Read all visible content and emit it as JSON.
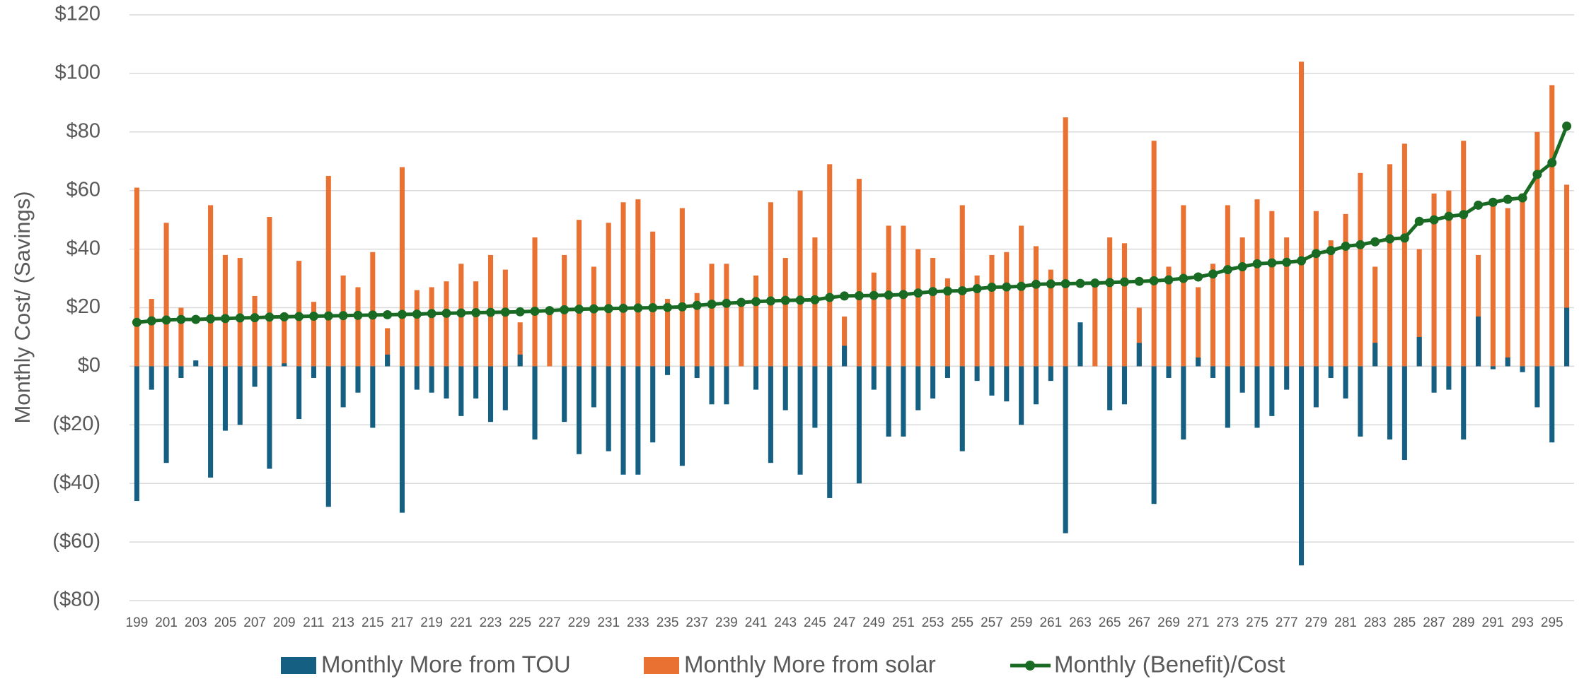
{
  "chart_data": {
    "type": "bar_line",
    "y_label": "Monthly Cost/ (Savings)",
    "categories": [
      199,
      null,
      201,
      null,
      203,
      null,
      205,
      null,
      207,
      null,
      209,
      null,
      211,
      null,
      213,
      null,
      215,
      null,
      217,
      null,
      219,
      null,
      221,
      null,
      223,
      null,
      225,
      null,
      227,
      null,
      229,
      null,
      231,
      null,
      233,
      null,
      235,
      null,
      237,
      null,
      239,
      null,
      241,
      null,
      243,
      null,
      245,
      null,
      247,
      null,
      249,
      null,
      251,
      null,
      253,
      null,
      255,
      null,
      257,
      null,
      259,
      null,
      261,
      null,
      263,
      null,
      265,
      null,
      267,
      null,
      269,
      null,
      271,
      null,
      273,
      null,
      275,
      null,
      277,
      null,
      279,
      null,
      281,
      null,
      283,
      null,
      285,
      null,
      287,
      null,
      289,
      null,
      291,
      null,
      293,
      null,
      295,
      null
    ],
    "series": [
      {
        "name": "Monthly More from TOU",
        "type": "bar",
        "color": "#156082",
        "values": [
          -46,
          -8,
          -33,
          -4,
          2,
          -38,
          -22,
          -20,
          -7,
          -35,
          1,
          -18,
          -4,
          -48,
          -14,
          -9,
          -21,
          4,
          -50,
          -8,
          -9,
          -11,
          -17,
          -11,
          -19,
          -15,
          4,
          -25,
          0,
          -19,
          -30,
          -14,
          -29,
          -37,
          -37,
          -26,
          -3,
          -34,
          -4,
          -13,
          -13,
          0,
          -8,
          -33,
          -15,
          -37,
          -21,
          -45,
          7,
          -40,
          -8,
          -24,
          -24,
          -15,
          -11,
          -4,
          -29,
          -5,
          -10,
          -12,
          -20,
          -13,
          -5,
          -57,
          15,
          0,
          -15,
          -13,
          8,
          -47,
          -4,
          -25,
          3,
          -4,
          -21,
          -9,
          -21,
          -17,
          -8,
          -68,
          -14,
          -4,
          -11,
          -24,
          8,
          -25,
          -32,
          10,
          -9,
          -8,
          -25,
          17,
          -1,
          3,
          -2,
          -14,
          -26,
          20
        ]
      },
      {
        "name": "Monthly More from solar",
        "type": "bar",
        "color": "#e97132",
        "values": [
          61,
          23,
          49,
          20,
          0,
          55,
          38,
          37,
          24,
          51,
          17,
          36,
          22,
          65,
          31,
          27,
          39,
          13,
          68,
          26,
          27,
          29,
          35,
          29,
          38,
          33,
          15,
          44,
          19,
          38,
          50,
          34,
          49,
          56,
          57,
          46,
          23,
          54,
          25,
          35,
          35,
          22,
          31,
          56,
          37,
          60,
          44,
          69,
          17,
          64,
          32,
          48,
          48,
          40,
          37,
          30,
          55,
          31,
          38,
          39,
          48,
          41,
          33,
          85,
          13,
          29,
          44,
          42,
          20,
          77,
          34,
          55,
          27,
          35,
          55,
          44,
          57,
          53,
          44,
          104,
          53,
          43,
          52,
          66,
          34,
          69,
          76,
          40,
          59,
          60,
          77,
          38,
          57,
          54,
          59,
          80,
          96,
          62
        ]
      },
      {
        "name": "Monthly (Benefit)/Cost",
        "type": "line",
        "color": "#196b24",
        "values": [
          15,
          15.5,
          15.8,
          16,
          16,
          16.2,
          16.3,
          16.5,
          16.6,
          16.8,
          16.9,
          17,
          17.1,
          17.2,
          17.3,
          17.4,
          17.5,
          17.6,
          17.7,
          17.8,
          18,
          18.1,
          18.2,
          18.3,
          18.4,
          18.5,
          18.6,
          18.8,
          19,
          19.3,
          19.5,
          19.6,
          19.7,
          19.8,
          19.9,
          20,
          20.1,
          20.3,
          20.8,
          21.2,
          21.5,
          21.8,
          22.1,
          22.3,
          22.5,
          22.6,
          22.7,
          23.5,
          24,
          24.1,
          24.2,
          24.3,
          24.5,
          25,
          25.5,
          25.7,
          25.8,
          26.5,
          27,
          27.1,
          27.3,
          28,
          28.1,
          28.2,
          28.3,
          28.4,
          28.6,
          28.8,
          29,
          29.2,
          29.5,
          30,
          30.5,
          31.5,
          33,
          34,
          35,
          35.3,
          35.5,
          36,
          38.5,
          39.5,
          41,
          41.5,
          42.5,
          43.5,
          43.8,
          49.5,
          50,
          51.2,
          51.8,
          55,
          56,
          57,
          57.5,
          65.5,
          69.5,
          82
        ]
      }
    ],
    "ylim": [
      -80,
      120
    ],
    "yticks": [
      {
        "value": -80,
        "label": "($80)"
      },
      {
        "value": -60,
        "label": "($60)"
      },
      {
        "value": -40,
        "label": "($40)"
      },
      {
        "value": -20,
        "label": "($20)"
      },
      {
        "value": 0,
        "label": "$0"
      },
      {
        "value": 20,
        "label": "$20"
      },
      {
        "value": 40,
        "label": "$40"
      },
      {
        "value": 60,
        "label": "$60"
      },
      {
        "value": 80,
        "label": "$80"
      },
      {
        "value": 100,
        "label": "$100"
      },
      {
        "value": 120,
        "label": "$120"
      }
    ],
    "grid": true,
    "legend": "bottom"
  }
}
